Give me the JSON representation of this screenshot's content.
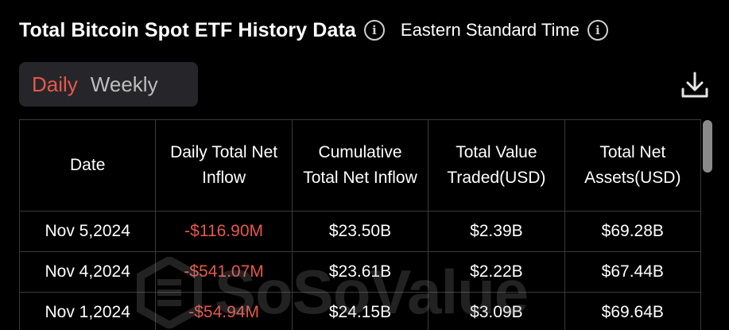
{
  "header": {
    "title": "Total Bitcoin Spot ETF History Data",
    "timezone": "Eastern Standard Time"
  },
  "tabs": [
    {
      "label": "Daily",
      "active": true
    },
    {
      "label": "Weekly",
      "active": false
    }
  ],
  "table": {
    "headers": [
      "Date",
      "Daily Total Net Inflow",
      "Cumulative Total Net Inflow",
      "Total Value Traded(USD)",
      "Total Net Assets(USD)"
    ],
    "rows": [
      [
        "Nov 5,2024",
        "-$116.90M",
        "$23.50B",
        "$2.39B",
        "$69.28B"
      ],
      [
        "Nov 4,2024",
        "-$541.07M",
        "$23.61B",
        "$2.22B",
        "$67.44B"
      ],
      [
        "Nov 1,2024",
        "-$54.94M",
        "$24.15B",
        "$3.09B",
        "$69.64B"
      ]
    ]
  },
  "watermark": {
    "text": "SoSoValue"
  },
  "colors": {
    "background": "#000000",
    "accent": "#e5584a",
    "tab_bg": "#26262a",
    "border": "#3a3a3a"
  },
  "icons": {
    "info": "info-icon",
    "download": "download-icon"
  }
}
